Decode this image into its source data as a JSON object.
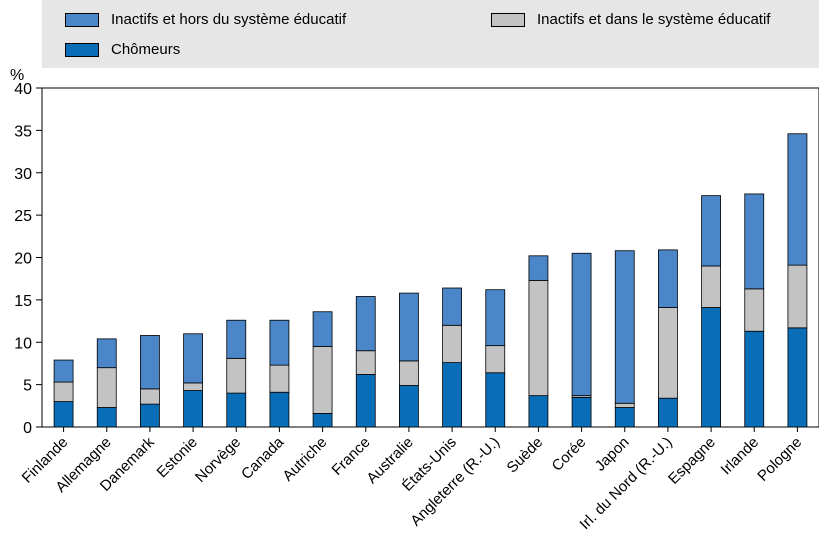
{
  "chart_data": {
    "type": "bar",
    "stacked": true,
    "ylabel": "%",
    "ylim": [
      0,
      40
    ],
    "yticks": [
      0,
      5,
      10,
      15,
      20,
      25,
      30,
      35,
      40
    ],
    "grid": false,
    "legend_position": "top",
    "categories": [
      "Finlande",
      "Allemagne",
      "Danemark",
      "Estonie",
      "Norvège",
      "Canada",
      "Autriche",
      "France",
      "Australie",
      "États-Unis",
      "Angleterre (R.-U.)",
      "Suède",
      "Corée",
      "Japon",
      "Irl. du Nord (R.-U.)",
      "Espagne",
      "Irlande",
      "Pologne"
    ],
    "series": [
      {
        "name": "Chômeurs",
        "color": "#0a6db7",
        "values": [
          3.0,
          2.3,
          2.7,
          4.3,
          4.0,
          4.1,
          1.6,
          6.2,
          4.9,
          7.6,
          6.4,
          3.7,
          3.5,
          2.3,
          3.4,
          14.1,
          11.3,
          11.7
        ]
      },
      {
        "name": "Inactifs et dans le système éducatif",
        "color": "#c3c3c3",
        "values": [
          2.3,
          4.7,
          1.8,
          0.9,
          4.1,
          3.2,
          7.9,
          2.8,
          2.9,
          4.4,
          3.2,
          13.6,
          0.2,
          0.5,
          10.7,
          4.9,
          5.0,
          7.4
        ]
      },
      {
        "name": "Inactifs et hors du système éducatif",
        "color": "#4a86c8",
        "values": [
          2.6,
          3.4,
          6.3,
          5.8,
          4.5,
          5.3,
          4.1,
          6.4,
          8.0,
          4.4,
          6.6,
          2.9,
          16.8,
          18.0,
          6.8,
          8.3,
          11.2,
          15.5
        ]
      }
    ]
  },
  "legend": {
    "items": [
      {
        "label": "Inactifs et hors du système éducatif",
        "color": "#4a86c8"
      },
      {
        "label": "Inactifs et dans le système éducatif",
        "color": "#c3c3c3"
      },
      {
        "label": "Chômeurs",
        "color": "#0a6db7"
      }
    ]
  }
}
